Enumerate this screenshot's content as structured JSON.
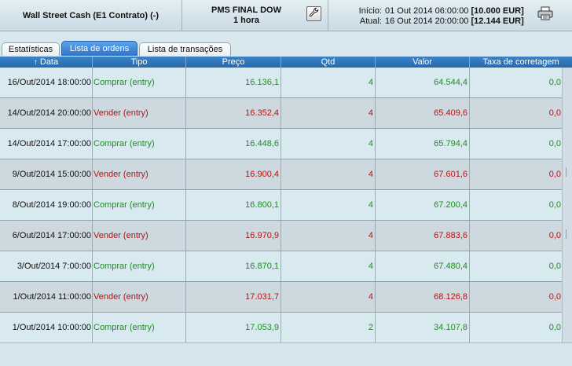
{
  "header": {
    "title": "Wall Street Cash (E1 Contrato) (-)",
    "strategy_name": "PMS FINAL DOW",
    "strategy_timeframe": "1 hora",
    "start_label": "Início:",
    "start_date": "01 Out 2014 06:00:00",
    "start_value": "[10.000 EUR]",
    "current_label": "Atual:",
    "current_date": "16 Out 2014 20:00:00",
    "current_value": "[12.144 EUR]"
  },
  "tabs": [
    {
      "label": "Estatísticas",
      "active": false
    },
    {
      "label": "Lista de ordens",
      "active": true
    },
    {
      "label": "Lista de transações",
      "active": false
    }
  ],
  "table": {
    "columns": [
      "Data",
      "Tipo",
      "Preço",
      "Qtd",
      "Valor",
      "Taxa de corretagem"
    ],
    "sort_indicator": "↑",
    "rows": [
      {
        "data": "16/Out/2014 18:00:00",
        "tipo": "Comprar (entry)",
        "side": "buy",
        "preco": "16.136,1",
        "qtd": "4",
        "valor": "64.544,4",
        "taxa": "0,0"
      },
      {
        "data": "14/Out/2014 20:00:00",
        "tipo": "Vender (entry)",
        "side": "sell",
        "preco": "16.352,4",
        "qtd": "4",
        "valor": "65.409,6",
        "taxa": "0,0"
      },
      {
        "data": "14/Out/2014 17:00:00",
        "tipo": "Comprar (entry)",
        "side": "buy",
        "preco": "16.448,6",
        "qtd": "4",
        "valor": "65.794,4",
        "taxa": "0,0"
      },
      {
        "data": "9/Out/2014 15:00:00",
        "tipo": "Vender (entry)",
        "side": "sell",
        "preco": "16.900,4",
        "qtd": "4",
        "valor": "67.601,6",
        "taxa": "0,0"
      },
      {
        "data": "8/Out/2014 19:00:00",
        "tipo": "Comprar (entry)",
        "side": "buy",
        "preco": "16.800,1",
        "qtd": "4",
        "valor": "67.200,4",
        "taxa": "0,0"
      },
      {
        "data": "6/Out/2014 17:00:00",
        "tipo": "Vender (entry)",
        "side": "sell",
        "preco": "16.970,9",
        "qtd": "4",
        "valor": "67.883,6",
        "taxa": "0,0"
      },
      {
        "data": "3/Out/2014 7:00:00",
        "tipo": "Comprar (entry)",
        "side": "buy",
        "preco": "16.870,1",
        "qtd": "4",
        "valor": "67.480,4",
        "taxa": "0,0"
      },
      {
        "data": "1/Out/2014 11:00:00",
        "tipo": "Vender (entry)",
        "side": "sell",
        "preco": "17.031,7",
        "qtd": "4",
        "valor": "68.126,8",
        "taxa": "0,0"
      },
      {
        "data": "1/Out/2014 10:00:00",
        "tipo": "Comprar (entry)",
        "side": "buy",
        "preco": "17.053,9",
        "qtd": "2",
        "valor": "34.107,8",
        "taxa": "0,0"
      }
    ]
  },
  "colors": {
    "buy": "#1e8f1e",
    "sell": "#b01616",
    "header_blue": "#2f74c8"
  },
  "icons": {
    "edit": "wrench-icon",
    "print": "printer-icon",
    "sort": "sort-up-arrow-icon"
  }
}
